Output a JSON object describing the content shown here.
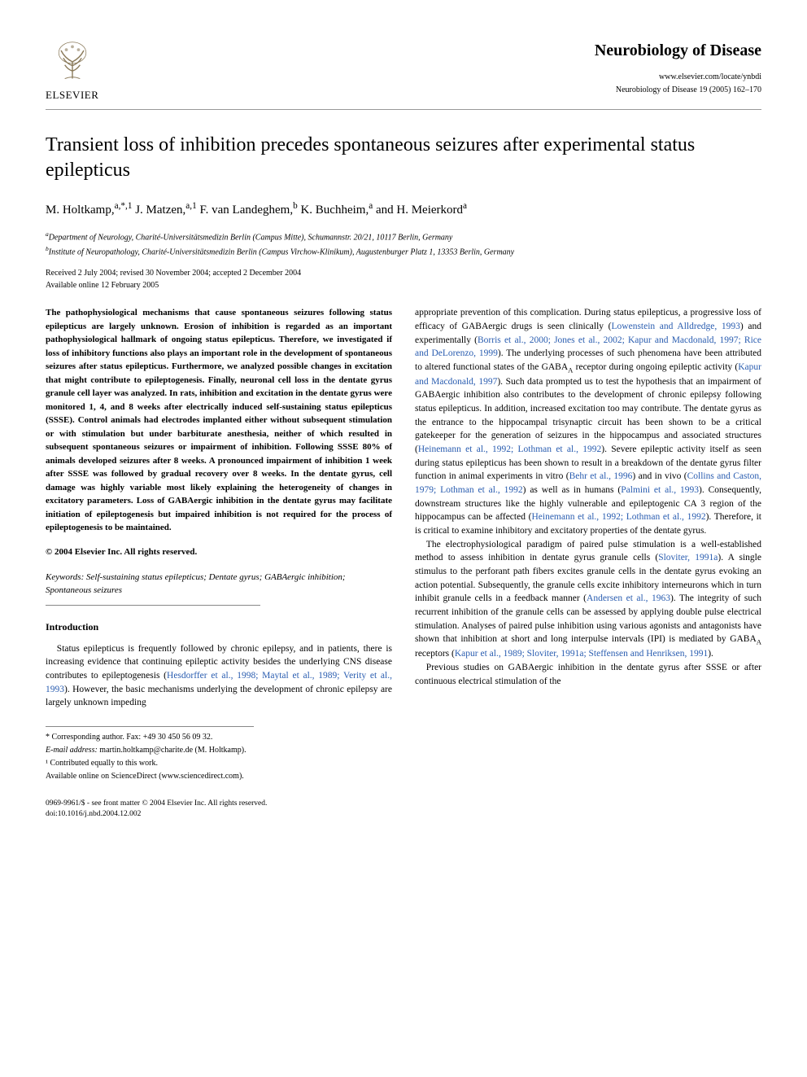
{
  "header": {
    "publisher": "ELSEVIER",
    "journal_title": "Neurobiology of Disease",
    "journal_url": "www.elsevier.com/locate/ynbdi",
    "journal_citation": "Neurobiology of Disease 19 (2005) 162–170"
  },
  "article": {
    "title": "Transient loss of inhibition precedes spontaneous seizures after experimental status epilepticus",
    "authors_html": "M. Holtkamp,<sup>a,*,1</sup> J. Matzen,<sup>a,1</sup> F. van Landeghem,<sup>b</sup> K. Buchheim,<sup>a</sup> and H. Meierkord<sup>a</sup>",
    "affiliations": [
      "<sup>a</sup>Department of Neurology, Charité-Universitätsmedizin Berlin (Campus Mitte), Schumannstr. 20/21, 10117 Berlin, Germany",
      "<sup>b</sup>Institute of Neuropathology, Charité-Universitätsmedizin Berlin (Campus Virchow-Klinikum), Augustenburger Platz 1, 13353 Berlin, Germany"
    ],
    "received": "Received 2 July 2004; revised 30 November 2004; accepted 2 December 2004",
    "available": "Available online 12 February 2005"
  },
  "abstract": "The pathophysiological mechanisms that cause spontaneous seizures following status epilepticus are largely unknown. Erosion of inhibition is regarded as an important pathophysiological hallmark of ongoing status epilepticus. Therefore, we investigated if loss of inhibitory functions also plays an important role in the development of spontaneous seizures after status epilepticus. Furthermore, we analyzed possible changes in excitation that might contribute to epileptogenesis. Finally, neuronal cell loss in the dentate gyrus granule cell layer was analyzed. In rats, inhibition and excitation in the dentate gyrus were monitored 1, 4, and 8 weeks after electrically induced self-sustaining status epilepticus (SSSE). Control animals had electrodes implanted either without subsequent stimulation or with stimulation but under barbiturate anesthesia, neither of which resulted in subsequent spontaneous seizures or impairment of inhibition. Following SSSE 80% of animals developed seizures after 8 weeks. A pronounced impairment of inhibition 1 week after SSSE was followed by gradual recovery over 8 weeks. In the dentate gyrus, cell damage was highly variable most likely explaining the heterogeneity of changes in excitatory parameters. Loss of GABAergic inhibition in the dentate gyrus may facilitate initiation of epileptogenesis but impaired inhibition is not required for the process of epileptogenesis to be maintained.",
  "copyright_line": "© 2004 Elsevier Inc. All rights reserved.",
  "keywords_label": "Keywords:",
  "keywords_text": "Self-sustaining status epilepticus; Dentate gyrus; GABAergic inhibition; Spontaneous seizures",
  "intro_heading": "Introduction",
  "intro_para1_pre": "Status epilepticus is frequently followed by chronic epilepsy, and in patients, there is increasing evidence that continuing epileptic activity besides the underlying CNS disease contributes to epileptogenesis (",
  "intro_para1_cite": "Hesdorffer et al., 1998; Maytal et al., 1989; Verity et al., 1993",
  "intro_para1_post": "). However, the basic mechanisms underlying the development of chronic epilepsy are largely unknown impeding",
  "col2_para1_parts": [
    {
      "t": "text",
      "v": "appropriate prevention of this complication. During status epilepticus, a progressive loss of efficacy of GABAergic drugs is seen clinically ("
    },
    {
      "t": "cite",
      "v": "Lowenstein and Alldredge, 1993"
    },
    {
      "t": "text",
      "v": ") and experimentally ("
    },
    {
      "t": "cite",
      "v": "Borris et al., 2000; Jones et al., 2002; Kapur and Macdonald, 1997; Rice and DeLorenzo, 1999"
    },
    {
      "t": "text",
      "v": "). The underlying processes of such phenomena have been attributed to altered functional states of the GABA"
    },
    {
      "t": "sub",
      "v": "A"
    },
    {
      "t": "text",
      "v": " receptor during ongoing epileptic activity ("
    },
    {
      "t": "cite",
      "v": "Kapur and Macdonald, 1997"
    },
    {
      "t": "text",
      "v": "). Such data prompted us to test the hypothesis that an impairment of GABAergic inhibition also contributes to the development of chronic epilepsy following status epilepticus. In addition, increased excitation too may contribute. The dentate gyrus as the entrance to the hippocampal trisynaptic circuit has been shown to be a critical gatekeeper for the generation of seizures in the hippocampus and associated structures ("
    },
    {
      "t": "cite",
      "v": "Heinemann et al., 1992; Lothman et al., 1992"
    },
    {
      "t": "text",
      "v": "). Severe epileptic activity itself as seen during status epilepticus has been shown to result in a breakdown of the dentate gyrus filter function in animal experiments in vitro ("
    },
    {
      "t": "cite",
      "v": "Behr et al., 1996"
    },
    {
      "t": "text",
      "v": ") and in vivo ("
    },
    {
      "t": "cite",
      "v": "Collins and Caston, 1979; Lothman et al., 1992"
    },
    {
      "t": "text",
      "v": ") as well as in humans ("
    },
    {
      "t": "cite",
      "v": "Palmini et al., 1993"
    },
    {
      "t": "text",
      "v": "). Consequently, downstream structures like the highly vulnerable and epileptogenic CA 3 region of the hippocampus can be affected ("
    },
    {
      "t": "cite",
      "v": "Heinemann et al., 1992; Lothman et al., 1992"
    },
    {
      "t": "text",
      "v": "). Therefore, it is critical to examine inhibitory and excitatory properties of the dentate gyrus."
    }
  ],
  "col2_para2_parts": [
    {
      "t": "text",
      "v": "The electrophysiological paradigm of paired pulse stimulation is a well-established method to assess inhibition in dentate gyrus granule cells ("
    },
    {
      "t": "cite",
      "v": "Sloviter, 1991a"
    },
    {
      "t": "text",
      "v": "). A single stimulus to the perforant path fibers excites granule cells in the dentate gyrus evoking an action potential. Subsequently, the granule cells excite inhibitory interneurons which in turn inhibit granule cells in a feedback manner ("
    },
    {
      "t": "cite",
      "v": "Andersen et al., 1963"
    },
    {
      "t": "text",
      "v": "). The integrity of such recurrent inhibition of the granule cells can be assessed by applying double pulse electrical stimulation. Analyses of paired pulse inhibition using various agonists and antagonists have shown that inhibition at short and long interpulse intervals (IPI) is mediated by GABA"
    },
    {
      "t": "sub",
      "v": "A"
    },
    {
      "t": "text",
      "v": " receptors ("
    },
    {
      "t": "cite",
      "v": "Kapur et al., 1989; Sloviter, 1991a; Steffensen and Henriksen, 1991"
    },
    {
      "t": "text",
      "v": ")."
    }
  ],
  "col2_para3": "Previous studies on GABAergic inhibition in the dentate gyrus after SSSE or after continuous electrical stimulation of the",
  "footnotes": {
    "corresponding": "* Corresponding author. Fax: +49 30 450 56 09 32.",
    "email_label": "E-mail address:",
    "email": "martin.holtkamp@charite.de (M. Holtkamp).",
    "contrib": "¹ Contributed equally to this work.",
    "sciencedirect": "Available online on ScienceDirect (www.sciencedirect.com)."
  },
  "page_footer": {
    "line1": "0969-9961/$ - see front matter © 2004 Elsevier Inc. All rights reserved.",
    "line2": "doi:10.1016/j.nbd.2004.12.002"
  },
  "colors": {
    "citation": "#2a5db0",
    "text": "#000000",
    "rule": "#999999"
  }
}
